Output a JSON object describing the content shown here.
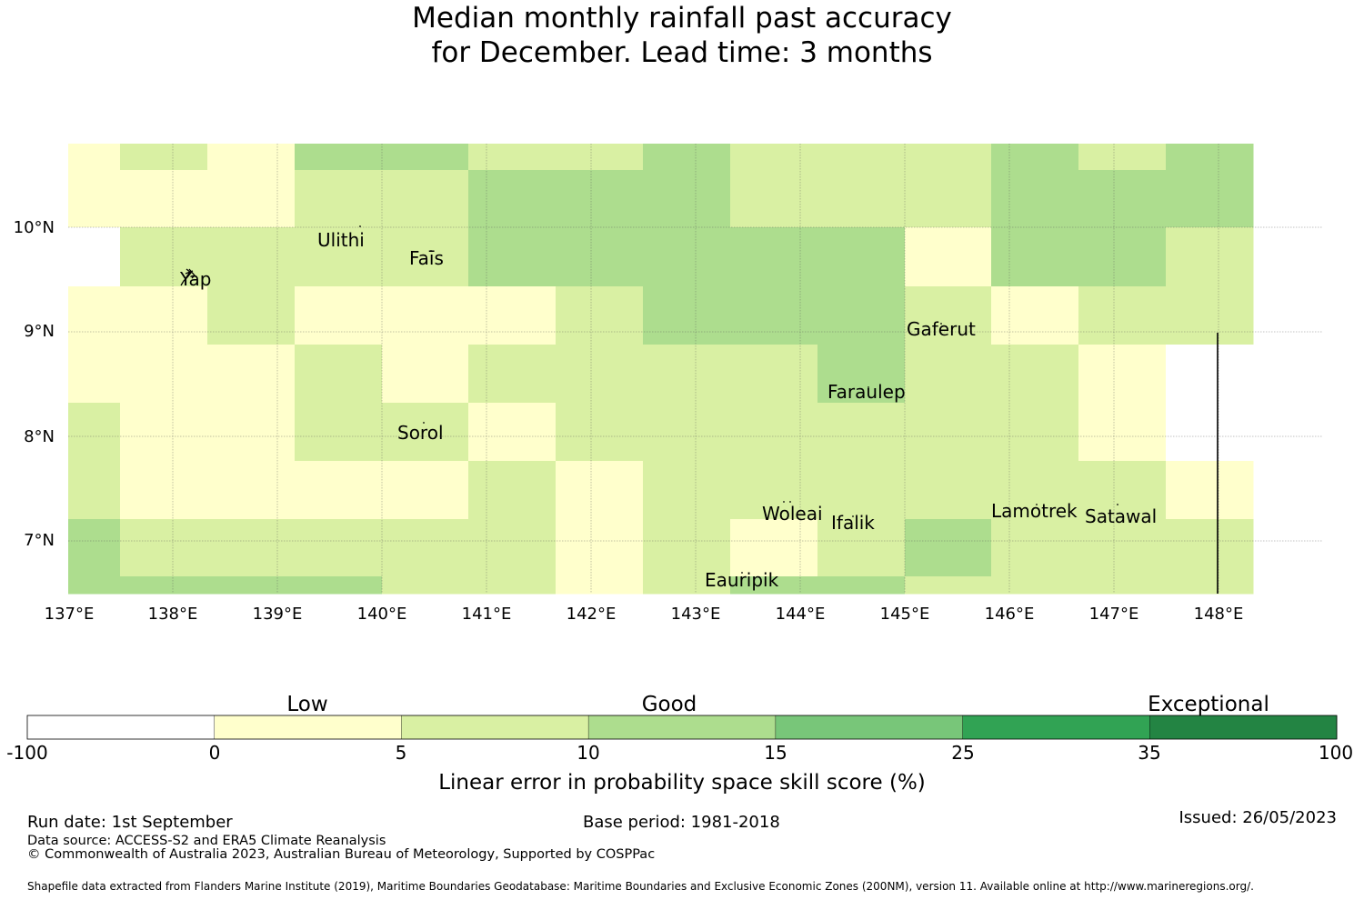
{
  "title": {
    "line1": "Median monthly rainfall past accuracy",
    "line2": "for December. Lead time: 3 months"
  },
  "map": {
    "x_ticks": [
      "137°E",
      "138°E",
      "139°E",
      "140°E",
      "141°E",
      "142°E",
      "143°E",
      "144°E",
      "145°E",
      "146°E",
      "147°E",
      "148°E"
    ],
    "y_ticks": [
      "10°N",
      "9°N",
      "8°N",
      "7°N"
    ],
    "places": [
      {
        "name": "Ulithi"
      },
      {
        "name": "Faīs"
      },
      {
        "name": "Yap"
      },
      {
        "name": "Gaferut"
      },
      {
        "name": "Faraulep"
      },
      {
        "name": "Sorol"
      },
      {
        "name": "Woleai"
      },
      {
        "name": "Ifalik"
      },
      {
        "name": "Lamotrek"
      },
      {
        "name": "Satawal"
      },
      {
        "name": "Eauripik"
      }
    ],
    "category_colors": {
      "none": "#ffffff",
      "c0_5": "#ffffcc",
      "c5_10": "#d9f0a3",
      "c10_15": "#addd8e",
      "c15_25": "#78c679",
      "c25_35": "#31a354",
      "c35_100": "#238443"
    }
  },
  "colorbar": {
    "category_labels": [
      "Low",
      "Good",
      "Exceptional"
    ],
    "ticks": [
      "-100",
      "0",
      "5",
      "10",
      "15",
      "25",
      "35",
      "100"
    ],
    "colors": [
      "#ffffff",
      "#ffffcc",
      "#d9f0a3",
      "#addd8e",
      "#78c679",
      "#31a354",
      "#238443"
    ],
    "label": "Linear error in probability space skill score (%)"
  },
  "footer": {
    "run_date": "Run date: 1st September",
    "base_period": "Base period: 1981-2018",
    "issued": "Issued: 26/05/2023",
    "data_source": "Data source: ACCESS-S2 and ERA5 Climate Reanalysis",
    "copyright": "© Commonwealth of Australia 2023, Australian Bureau of Meteorology, Supported by COSPPac",
    "shapefile": "Shapefile data extracted from Flanders Marine Institute (2019), Maritime Boundaries Geodatabase: Maritime Boundaries and Exclusive Economic Zones (200NM), version 11. Available online at http://www.marineregions.org/."
  }
}
